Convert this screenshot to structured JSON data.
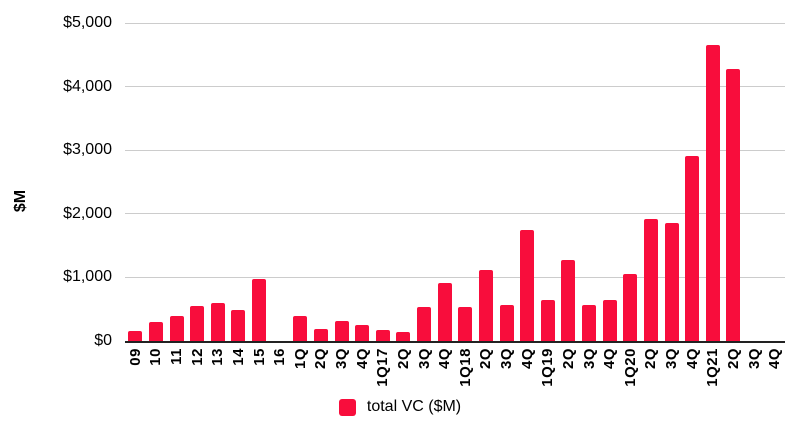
{
  "chart_data": {
    "type": "bar",
    "title": "",
    "ylabel": "$M",
    "xlabel": "",
    "legend_label": "total VC ($M)",
    "legend_position": "bottom-center",
    "grid": true,
    "ylim": [
      0,
      5000
    ],
    "ytick_interval": 1000,
    "ytick_labels": [
      "$0",
      "$1,000",
      "$2,000",
      "$3,000",
      "$4,000",
      "$5,000"
    ],
    "categories": [
      "09",
      "10",
      "11",
      "12",
      "13",
      "14",
      "15",
      "16",
      "1Q",
      "2Q",
      "3Q",
      "4Q",
      "1Q17",
      "2Q",
      "3Q",
      "4Q",
      "1Q18",
      "2Q",
      "3Q",
      "4Q",
      "1Q19",
      "2Q",
      "3Q",
      "4Q",
      "1Q20",
      "2Q",
      "3Q",
      "4Q",
      "1Q21",
      "2Q",
      "3Q",
      "4Q"
    ],
    "values": [
      160,
      300,
      400,
      550,
      600,
      480,
      975,
      null,
      400,
      190,
      315,
      250,
      170,
      135,
      530,
      910,
      530,
      1110,
      560,
      1740,
      650,
      1270,
      560,
      650,
      1060,
      1920,
      1860,
      2910,
      4660,
      4270,
      null,
      null
    ],
    "colors": {
      "bar": "#F80D3C",
      "gridline": "#cccccc",
      "axis_line": "#222222",
      "text": "#000000",
      "background": "#ffffff"
    }
  }
}
